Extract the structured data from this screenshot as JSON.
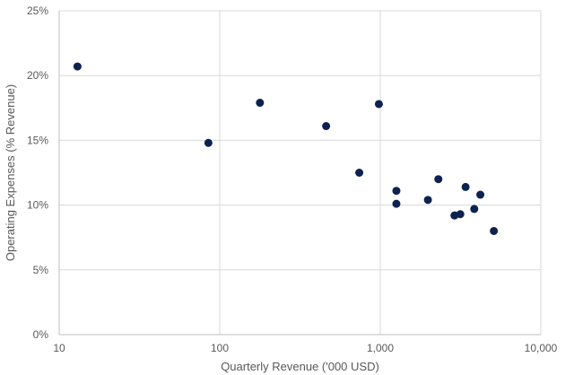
{
  "chart_data": {
    "type": "scatter",
    "title": "",
    "xlabel": "Quarterly Revenue ('000 USD)",
    "ylabel": "Operating Expenses (% Revenue)",
    "x_scale": "log",
    "xlim": [
      10,
      10000
    ],
    "ylim": [
      0,
      0.25
    ],
    "x_ticks": [
      10,
      100,
      1000,
      10000
    ],
    "x_tick_labels": [
      "10",
      "100",
      "1,000",
      "10,000"
    ],
    "y_ticks": [
      0,
      0.05,
      0.1,
      0.15,
      0.2,
      0.25
    ],
    "y_tick_labels": [
      "0%",
      "5%",
      "10%",
      "15%",
      "20%",
      "25%"
    ],
    "grid": true,
    "legend": "none",
    "marker_color": "#0d2250",
    "points": [
      {
        "x": 13,
        "y": 0.207
      },
      {
        "x": 85,
        "y": 0.148
      },
      {
        "x": 178,
        "y": 0.179
      },
      {
        "x": 460,
        "y": 0.161
      },
      {
        "x": 740,
        "y": 0.125
      },
      {
        "x": 980,
        "y": 0.178
      },
      {
        "x": 1260,
        "y": 0.111
      },
      {
        "x": 1260,
        "y": 0.101
      },
      {
        "x": 1980,
        "y": 0.104
      },
      {
        "x": 2300,
        "y": 0.12
      },
      {
        "x": 2900,
        "y": 0.092
      },
      {
        "x": 3150,
        "y": 0.093
      },
      {
        "x": 3400,
        "y": 0.114
      },
      {
        "x": 3850,
        "y": 0.097
      },
      {
        "x": 4200,
        "y": 0.108
      },
      {
        "x": 5100,
        "y": 0.08
      }
    ]
  }
}
